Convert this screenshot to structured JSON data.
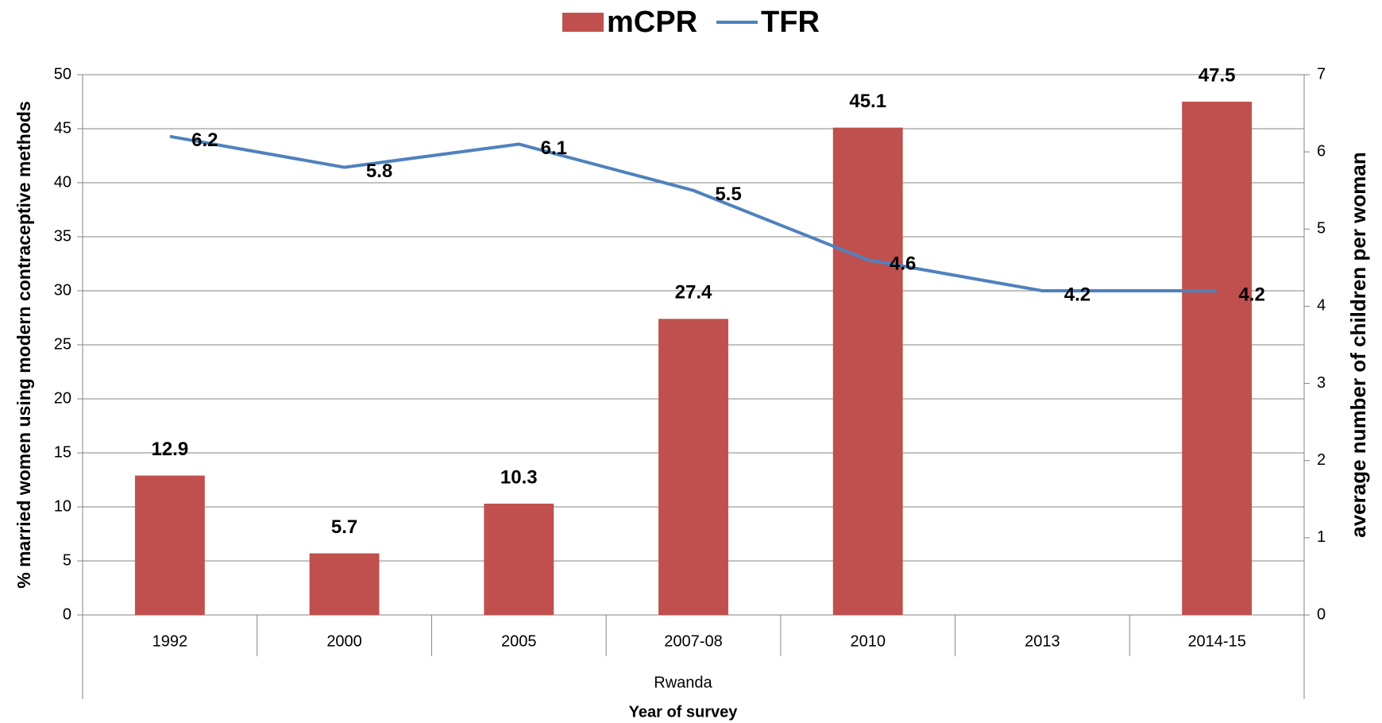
{
  "chart_data": {
    "type": "bar_line",
    "categories": [
      "1992",
      "2000",
      "2005",
      "2007-08",
      "2010",
      "2013",
      "2014-15"
    ],
    "group_label": "Rwanda",
    "x_label": "Year of survey",
    "y_label": "% married women using modern contraceptive methods",
    "y2_label": "average number of children per woman",
    "series": [
      {
        "name": "mCPR",
        "type": "bar",
        "color": "#c0504d",
        "axis": "y",
        "values": [
          12.9,
          5.7,
          10.3,
          27.4,
          45.1,
          null,
          47.5
        ]
      },
      {
        "name": "TFR",
        "type": "line",
        "color": "#4f81bd",
        "axis": "y2",
        "values": [
          6.2,
          5.8,
          6.1,
          5.5,
          4.6,
          4.2,
          4.2
        ]
      }
    ],
    "ylim": [
      0,
      50
    ],
    "yticks": [
      0,
      5,
      10,
      15,
      20,
      25,
      30,
      35,
      40,
      45,
      50
    ],
    "y2lim": [
      0,
      7
    ],
    "y2ticks": [
      0,
      1,
      2,
      3,
      4,
      5,
      6,
      7
    ],
    "grid": true,
    "legend": "top"
  }
}
